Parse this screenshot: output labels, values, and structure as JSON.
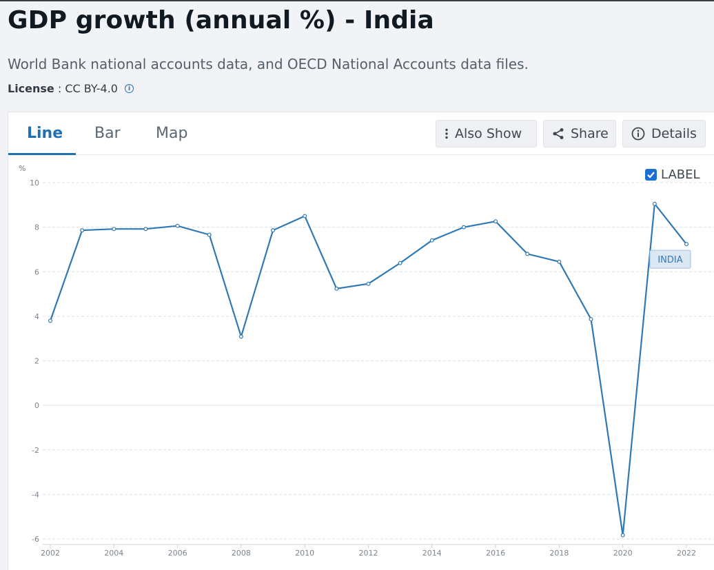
{
  "header": {
    "title": "GDP growth (annual %) - India",
    "subtitle": "World Bank national accounts data, and OECD National Accounts data files.",
    "license_label": "License",
    "license_value": ": CC BY-4.0"
  },
  "tabs": [
    "Line",
    "Bar",
    "Map"
  ],
  "actions": {
    "also_show": "Also Show",
    "share": "Share",
    "details": "Details"
  },
  "legend_toggle": {
    "label": "LABEL",
    "checked": true
  },
  "colors": {
    "accent": "#1f6fb5",
    "series": "#2f78b4"
  },
  "chart_data": {
    "type": "line",
    "ylabel": "%",
    "ylim": [
      -6,
      10
    ],
    "yticks": [
      10,
      8,
      6,
      4,
      2,
      0,
      -2,
      -4,
      -6
    ],
    "xlim": [
      2002,
      2022
    ],
    "xticks": [
      2002,
      2004,
      2006,
      2008,
      2010,
      2012,
      2014,
      2016,
      2018,
      2020,
      2022
    ],
    "grid": true,
    "series": [
      {
        "name": "INDIA",
        "x": [
          2002,
          2003,
          2004,
          2005,
          2006,
          2007,
          2008,
          2009,
          2010,
          2011,
          2012,
          2013,
          2014,
          2015,
          2016,
          2017,
          2018,
          2019,
          2020,
          2021,
          2022
        ],
        "values": [
          3.8,
          7.86,
          7.92,
          7.92,
          8.06,
          7.66,
          3.09,
          7.86,
          8.5,
          5.24,
          5.46,
          6.39,
          7.41,
          8.0,
          8.26,
          6.8,
          6.45,
          3.87,
          -5.83,
          9.05,
          7.24
        ]
      }
    ]
  }
}
